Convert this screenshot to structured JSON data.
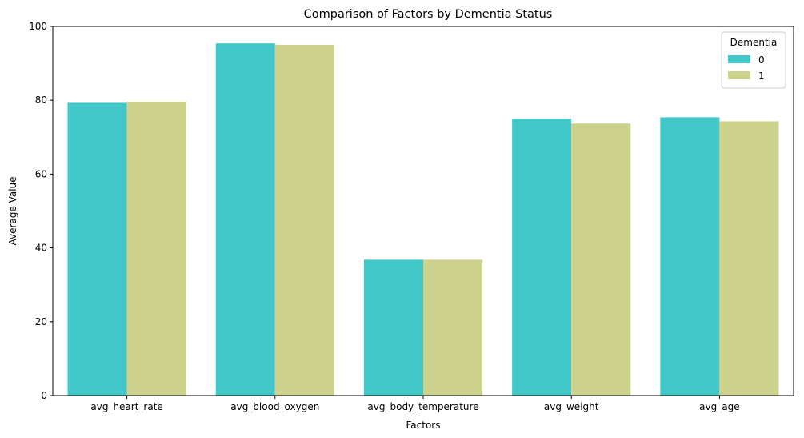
{
  "chart_data": {
    "type": "bar",
    "title": "Comparison of Factors by Dementia Status",
    "xlabel": "Factors",
    "ylabel": "Average Value",
    "ylim": [
      0,
      100
    ],
    "yticks": [
      0,
      20,
      40,
      60,
      80,
      100
    ],
    "grid": false,
    "categories": [
      "avg_heart_rate",
      "avg_blood_oxygen",
      "avg_body_temperature",
      "avg_weight",
      "avg_age"
    ],
    "legend": {
      "title": "Dementia",
      "placement": "top-right"
    },
    "series": [
      {
        "name": "0",
        "color": "#41c7c7",
        "values": [
          79.3,
          95.4,
          36.8,
          75.0,
          75.4
        ]
      },
      {
        "name": "1",
        "color": "#ccd28b",
        "values": [
          79.6,
          95.0,
          36.8,
          73.7,
          74.3
        ]
      }
    ]
  }
}
